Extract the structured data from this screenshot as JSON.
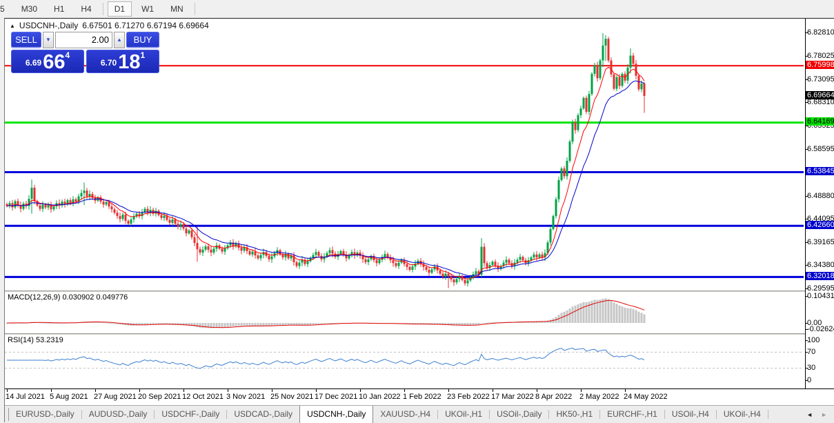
{
  "toolbar": {
    "timeframes": [
      {
        "label": "5",
        "active": false,
        "partial": true
      },
      {
        "label": "M30",
        "active": false
      },
      {
        "label": "H1",
        "active": false
      },
      {
        "label": "H4",
        "active": false
      },
      {
        "label": "D1",
        "active": true
      },
      {
        "label": "W1",
        "active": false
      },
      {
        "label": "MN",
        "active": false
      }
    ],
    "dividers_after": [
      3,
      6
    ]
  },
  "title": {
    "collapse_icon": "▲",
    "symbol": "USDCNH-,Daily",
    "ohlc": "6.67501 6.71270 6.67194 6.69664"
  },
  "trade_panel": {
    "sell_label": "SELL",
    "buy_label": "BUY",
    "volume": "2.00",
    "spin_down_icon": "▼",
    "spin_up_icon": "▲",
    "sell_price": {
      "small": "6.69",
      "big": "66",
      "sup": "4"
    },
    "buy_price": {
      "small": "6.70",
      "big": "18",
      "sup": "1"
    }
  },
  "indicators": {
    "macd": {
      "label": "MACD(12,26,9)",
      "values": "0.030902 0.049776"
    },
    "rsi": {
      "label": "RSI(14)",
      "values": "53.2319"
    }
  },
  "tabs": {
    "items": [
      "EURUSD-,Daily",
      "AUDUSD-,Daily",
      "USDCHF-,Daily",
      "USDCAD-,Daily",
      "USDCNH-,Daily",
      "XAUUSD-,H4",
      "UKOil-,H1",
      "USOil-,Daily",
      "HK50-,H1",
      "EURCHF-,H1",
      "USOil-,H4",
      "UKOil-,H4"
    ],
    "active_index": 4,
    "scroll_left_icon": "◄",
    "scroll_right_icon": "►"
  },
  "chart_data": {
    "type": "candlestick-with-indicators",
    "symbol": "USDCNH",
    "timeframe": "Daily",
    "price_ylim": [
      6.292,
      6.858
    ],
    "x_labels": [
      "14 Jul 2021",
      "5 Aug 2021",
      "27 Aug 2021",
      "20 Sep 2021",
      "12 Oct 2021",
      "3 Nov 2021",
      "25 Nov 2021",
      "17 Dec 2021",
      "10 Jan 2022",
      "1 Feb 2022",
      "23 Feb 2022",
      "17 Mar 2022",
      "8 Apr 2022",
      "2 May 2022",
      "24 May 2022"
    ],
    "x_label_every_n_candles": 16,
    "closes": [
      6.468,
      6.474,
      6.465,
      6.478,
      6.47,
      6.462,
      6.473,
      6.468,
      6.483,
      6.506,
      6.478,
      6.469,
      6.462,
      6.471,
      6.465,
      6.47,
      6.461,
      6.467,
      6.474,
      6.469,
      6.477,
      6.471,
      6.48,
      6.474,
      6.482,
      6.477,
      6.488,
      6.495,
      6.5,
      6.488,
      6.493,
      6.485,
      6.479,
      6.486,
      6.477,
      6.471,
      6.476,
      6.467,
      6.461,
      6.454,
      6.447,
      6.441,
      6.45,
      6.437,
      6.431,
      6.44,
      6.446,
      6.452,
      6.447,
      6.455,
      6.462,
      6.454,
      6.46,
      6.452,
      6.458,
      6.449,
      6.443,
      6.448,
      6.439,
      6.433,
      6.44,
      6.431,
      6.425,
      6.43,
      6.421,
      6.411,
      6.417,
      6.403,
      6.391,
      6.378,
      6.371,
      6.377,
      6.384,
      6.377,
      6.371,
      6.379,
      6.386,
      6.379,
      6.373,
      6.38,
      6.386,
      6.392,
      6.384,
      6.39,
      6.381,
      6.375,
      6.382,
      6.374,
      6.367,
      6.373,
      6.365,
      6.359,
      6.366,
      6.372,
      6.364,
      6.357,
      6.363,
      6.37,
      6.376,
      6.367,
      6.361,
      6.368,
      6.359,
      6.365,
      6.351,
      6.343,
      6.35,
      6.356,
      6.347,
      6.353,
      6.36,
      6.366,
      6.372,
      6.364,
      6.357,
      6.363,
      6.37,
      6.376,
      6.369,
      6.362,
      6.368,
      6.374,
      6.367,
      6.359,
      6.366,
      6.372,
      6.365,
      6.371,
      6.364,
      6.357,
      6.351,
      6.357,
      6.364,
      6.355,
      6.349,
      6.356,
      6.362,
      6.368,
      6.361,
      6.355,
      6.349,
      6.343,
      6.35,
      6.356,
      6.347,
      6.341,
      6.335,
      6.342,
      6.348,
      6.354,
      6.347,
      6.341,
      6.335,
      6.329,
      6.336,
      6.342,
      6.334,
      6.327,
      6.321,
      6.327,
      6.321,
      6.315,
      6.309,
      6.316,
      6.322,
      6.314,
      6.307,
      6.313,
      6.32,
      6.326,
      6.332,
      6.325,
      6.383,
      6.349,
      6.339,
      6.345,
      6.352,
      6.344,
      6.337,
      6.343,
      6.35,
      6.356,
      6.349,
      6.343,
      6.35,
      6.356,
      6.362,
      6.355,
      6.349,
      6.355,
      6.361,
      6.367,
      6.361,
      6.367,
      6.361,
      6.37,
      6.392,
      6.42,
      6.447,
      6.482,
      6.522,
      6.546,
      6.53,
      6.562,
      6.602,
      6.642,
      6.626,
      6.657,
      6.671,
      6.693,
      6.664,
      6.701,
      6.743,
      6.761,
      6.734,
      6.771,
      6.802,
      6.816,
      6.771,
      6.742,
      6.712,
      6.736,
      6.718,
      6.743,
      6.729,
      6.756,
      6.781,
      6.764,
      6.739,
      6.711,
      6.723,
      6.697
    ],
    "spikes": {
      "9": [
        6.523,
        6.452
      ],
      "28": [
        6.517,
        6.47
      ],
      "69": [
        6.424,
        6.352
      ],
      "160": [
        6.331,
        6.297
      ],
      "172": [
        6.401,
        6.321
      ],
      "216": [
        6.828,
        6.757
      ],
      "217": [
        6.821,
        6.77
      ],
      "226": [
        6.796,
        6.744
      ],
      "231": [
        6.713,
        6.662
      ]
    },
    "ma_periods": {
      "fast": 8,
      "slow": 17
    },
    "levels": [
      {
        "value": 6.75998,
        "color": "#f40000",
        "width": 2
      },
      {
        "value": 6.64169,
        "color": "#00e400",
        "width": 3
      },
      {
        "value": 6.53845,
        "color": "#0000dc",
        "width": 3
      },
      {
        "value": 6.4266,
        "color": "#0000dc",
        "width": 3
      },
      {
        "value": 6.32018,
        "color": "#0000dc",
        "width": 3
      }
    ],
    "price_axis": {
      "grid_labels": [
        "6.82810",
        "6.78025",
        "6.73095",
        "6.68310",
        "6.63525",
        "6.58595",
        "6.48880",
        "6.44095",
        "6.39165",
        "6.34380",
        "6.29595"
      ],
      "badges": [
        {
          "text": "6.75998",
          "bg": "#f00000",
          "fg": "#ffffff"
        },
        {
          "text": "6.69664",
          "bg": "#000000",
          "fg": "#ffffff"
        },
        {
          "text": "6.64169",
          "bg": "#00dc00",
          "fg": "#000000"
        },
        {
          "text": "6.53845",
          "bg": "#0000cc",
          "fg": "#ffffff"
        },
        {
          "text": "6.42660",
          "bg": "#0000cc",
          "fg": "#ffffff"
        },
        {
          "text": "6.32018",
          "bg": "#0000cc",
          "fg": "#ffffff"
        }
      ]
    },
    "macd": {
      "ylim": [
        -0.03,
        0.112
      ],
      "axis_labels": [
        "0.104313",
        "0.00",
        "-0.026249"
      ],
      "axis_values": [
        0.104313,
        0.0,
        -0.026249
      ],
      "current": 0.030902,
      "signal": 0.049776
    },
    "rsi": {
      "levels": [
        100,
        70,
        30,
        0
      ],
      "axis_labels": [
        "100",
        "70",
        "30",
        "0"
      ],
      "current": 53.2319
    },
    "colors": {
      "up": "#00a347",
      "down": "#e53030",
      "ma_fast": "#ff0000",
      "ma_slow": "#0000cc",
      "macd_hist": "#c6c6c6",
      "macd_signal": "#e00000",
      "rsi_line": "#3b7fd0",
      "level_dash": "#c0c0c0"
    }
  }
}
